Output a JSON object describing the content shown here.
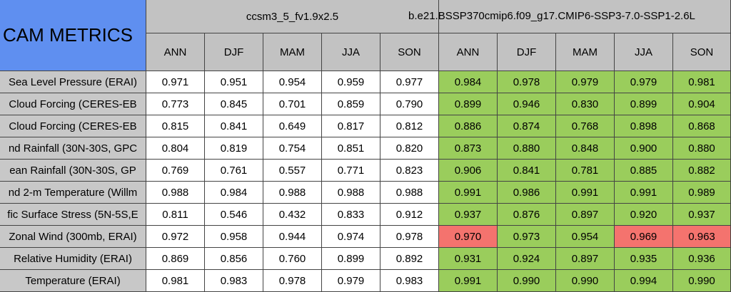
{
  "header": {
    "title": "CAM METRICS",
    "groups": [
      "ccsm3_5_fv1.9x2.5",
      "b.e21.BSSP370cmip6.f09_g17.CMIP6-SSP3-7.0-SSP1-2.6L"
    ],
    "columns": [
      "ANN",
      "DJF",
      "MAM",
      "JJA",
      "SON",
      "ANN",
      "DJF",
      "MAM",
      "JJA",
      "SON"
    ]
  },
  "table": {
    "rows": [
      {
        "label": "Sea Level Pressure (ERAI)",
        "values": [
          "0.971",
          "0.951",
          "0.954",
          "0.959",
          "0.977",
          "0.984",
          "0.978",
          "0.979",
          "0.979",
          "0.981"
        ],
        "colors": [
          "#ffffff",
          "#ffffff",
          "#ffffff",
          "#ffffff",
          "#ffffff",
          "#9acd5c",
          "#9acd5c",
          "#9acd5c",
          "#9acd5c",
          "#9acd5c"
        ]
      },
      {
        "label": "Cloud Forcing (CERES-EB",
        "values": [
          "0.773",
          "0.845",
          "0.701",
          "0.859",
          "0.790",
          "0.899",
          "0.946",
          "0.830",
          "0.899",
          "0.904"
        ],
        "colors": [
          "#ffffff",
          "#ffffff",
          "#ffffff",
          "#ffffff",
          "#ffffff",
          "#9acd5c",
          "#9acd5c",
          "#9acd5c",
          "#9acd5c",
          "#9acd5c"
        ]
      },
      {
        "label": "Cloud Forcing (CERES-EB",
        "values": [
          "0.815",
          "0.841",
          "0.649",
          "0.817",
          "0.812",
          "0.886",
          "0.874",
          "0.768",
          "0.898",
          "0.868"
        ],
        "colors": [
          "#ffffff",
          "#ffffff",
          "#ffffff",
          "#ffffff",
          "#ffffff",
          "#9acd5c",
          "#9acd5c",
          "#9acd5c",
          "#9acd5c",
          "#9acd5c"
        ]
      },
      {
        "label": "nd Rainfall (30N-30S, GPC",
        "values": [
          "0.804",
          "0.819",
          "0.754",
          "0.851",
          "0.820",
          "0.873",
          "0.880",
          "0.848",
          "0.900",
          "0.880"
        ],
        "colors": [
          "#ffffff",
          "#ffffff",
          "#ffffff",
          "#ffffff",
          "#ffffff",
          "#9acd5c",
          "#9acd5c",
          "#9acd5c",
          "#9acd5c",
          "#9acd5c"
        ]
      },
      {
        "label": "ean Rainfall (30N-30S, GP",
        "values": [
          "0.769",
          "0.761",
          "0.557",
          "0.771",
          "0.823",
          "0.906",
          "0.841",
          "0.781",
          "0.885",
          "0.882"
        ],
        "colors": [
          "#ffffff",
          "#ffffff",
          "#ffffff",
          "#ffffff",
          "#ffffff",
          "#9acd5c",
          "#9acd5c",
          "#9acd5c",
          "#9acd5c",
          "#9acd5c"
        ]
      },
      {
        "label": "nd 2-m Temperature (Willm",
        "values": [
          "0.988",
          "0.984",
          "0.988",
          "0.988",
          "0.988",
          "0.991",
          "0.986",
          "0.991",
          "0.991",
          "0.989"
        ],
        "colors": [
          "#ffffff",
          "#ffffff",
          "#ffffff",
          "#ffffff",
          "#ffffff",
          "#9acd5c",
          "#9acd5c",
          "#9acd5c",
          "#9acd5c",
          "#9acd5c"
        ]
      },
      {
        "label": "fic Surface Stress (5N-5S,E",
        "values": [
          "0.811",
          "0.546",
          "0.432",
          "0.833",
          "0.912",
          "0.937",
          "0.876",
          "0.897",
          "0.920",
          "0.937"
        ],
        "colors": [
          "#ffffff",
          "#ffffff",
          "#ffffff",
          "#ffffff",
          "#ffffff",
          "#9acd5c",
          "#9acd5c",
          "#9acd5c",
          "#9acd5c",
          "#9acd5c"
        ]
      },
      {
        "label": "Zonal Wind (300mb, ERAI)",
        "values": [
          "0.972",
          "0.958",
          "0.944",
          "0.974",
          "0.978",
          "0.970",
          "0.973",
          "0.954",
          "0.969",
          "0.963"
        ],
        "colors": [
          "#ffffff",
          "#ffffff",
          "#ffffff",
          "#ffffff",
          "#ffffff",
          "#f4736e",
          "#9acd5c",
          "#9acd5c",
          "#f4736e",
          "#f4736e"
        ]
      },
      {
        "label": "Relative Humidity (ERAI)",
        "values": [
          "0.869",
          "0.856",
          "0.760",
          "0.899",
          "0.892",
          "0.931",
          "0.924",
          "0.897",
          "0.935",
          "0.936"
        ],
        "colors": [
          "#ffffff",
          "#ffffff",
          "#ffffff",
          "#ffffff",
          "#ffffff",
          "#9acd5c",
          "#9acd5c",
          "#9acd5c",
          "#9acd5c",
          "#9acd5c"
        ]
      },
      {
        "label": "Temperature (ERAI)",
        "values": [
          "0.981",
          "0.983",
          "0.978",
          "0.979",
          "0.983",
          "0.991",
          "0.990",
          "0.990",
          "0.994",
          "0.990"
        ],
        "colors": [
          "#ffffff",
          "#ffffff",
          "#ffffff",
          "#ffffff",
          "#ffffff",
          "#9acd5c",
          "#9acd5c",
          "#9acd5c",
          "#9acd5c",
          "#9acd5c"
        ]
      }
    ]
  }
}
